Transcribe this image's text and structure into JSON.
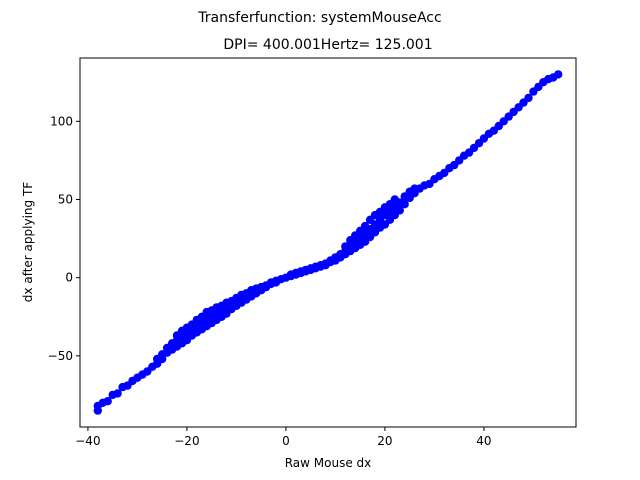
{
  "chart_data": {
    "type": "scatter",
    "suptitle": "Transferfunction: systemMouseAcc",
    "title": "DPI= 400.001Hertz= 125.001",
    "xlabel": "Raw Mouse dx",
    "ylabel": "dx after applying TF",
    "xlim": [
      -41.6,
      58.6
    ],
    "ylim": [
      -95.5,
      140.5
    ],
    "xticks": [
      -40,
      -20,
      0,
      20,
      40
    ],
    "xtick_labels": [
      "−40",
      "−20",
      "0",
      "20",
      "40"
    ],
    "yticks": [
      -50,
      0,
      50,
      100
    ],
    "ytick_labels": [
      "−50",
      "0",
      "50",
      "100"
    ],
    "grid": false,
    "legend": "none",
    "marker_color": "#0000ff",
    "series": [
      {
        "points": [
          [
            -38,
            -85
          ],
          [
            -38,
            -82
          ],
          [
            -37,
            -80
          ],
          [
            -36,
            -79
          ],
          [
            -35,
            -75
          ],
          [
            -34,
            -74
          ],
          [
            -33,
            -70
          ],
          [
            -32,
            -69
          ],
          [
            -31,
            -66
          ],
          [
            -30,
            -64
          ],
          [
            -29,
            -62
          ],
          [
            -28,
            -60
          ],
          [
            -27,
            -57
          ],
          [
            -26,
            -55
          ],
          [
            -26,
            -52
          ],
          [
            -25,
            -52
          ],
          [
            -25,
            -49
          ],
          [
            -24,
            -48
          ],
          [
            -24,
            -45
          ],
          [
            -23,
            -46
          ],
          [
            -23,
            -42
          ],
          [
            -22,
            -44
          ],
          [
            -22,
            -40
          ],
          [
            -22,
            -37
          ],
          [
            -21,
            -42
          ],
          [
            -21,
            -38
          ],
          [
            -21,
            -34
          ],
          [
            -20,
            -40
          ],
          [
            -20,
            -36
          ],
          [
            -20,
            -32
          ],
          [
            -19,
            -37
          ],
          [
            -19,
            -33
          ],
          [
            -19,
            -30
          ],
          [
            -18,
            -35
          ],
          [
            -18,
            -31
          ],
          [
            -18,
            -27
          ],
          [
            -17,
            -33
          ],
          [
            -17,
            -29
          ],
          [
            -17,
            -25
          ],
          [
            -16,
            -31
          ],
          [
            -16,
            -27
          ],
          [
            -16,
            -22
          ],
          [
            -15,
            -29
          ],
          [
            -15,
            -25
          ],
          [
            -15,
            -21
          ],
          [
            -14,
            -27
          ],
          [
            -14,
            -23
          ],
          [
            -14,
            -19
          ],
          [
            -13,
            -25
          ],
          [
            -13,
            -21
          ],
          [
            -13,
            -18
          ],
          [
            -12,
            -23
          ],
          [
            -12,
            -19
          ],
          [
            -12,
            -16
          ],
          [
            -11,
            -20
          ],
          [
            -11,
            -17
          ],
          [
            -11,
            -15
          ],
          [
            -10,
            -18
          ],
          [
            -10,
            -15
          ],
          [
            -10,
            -13
          ],
          [
            -9,
            -16
          ],
          [
            -9,
            -13
          ],
          [
            -9,
            -11
          ],
          [
            -8,
            -14
          ],
          [
            -8,
            -12
          ],
          [
            -8,
            -10
          ],
          [
            -7,
            -12
          ],
          [
            -7,
            -10
          ],
          [
            -7,
            -8
          ],
          [
            -6,
            -10
          ],
          [
            -6,
            -8
          ],
          [
            -6,
            -7
          ],
          [
            -5,
            -8
          ],
          [
            -5,
            -6
          ],
          [
            -4,
            -6
          ],
          [
            -4,
            -5
          ],
          [
            -3,
            -4
          ],
          [
            -3,
            -3
          ],
          [
            -2,
            -3
          ],
          [
            -2,
            -2
          ],
          [
            -1,
            -1
          ],
          [
            0,
            0
          ],
          [
            1,
            1
          ],
          [
            1,
            2
          ],
          [
            2,
            2
          ],
          [
            2,
            3
          ],
          [
            3,
            3
          ],
          [
            3,
            4
          ],
          [
            4,
            4
          ],
          [
            4,
            5
          ],
          [
            5,
            5
          ],
          [
            5,
            6
          ],
          [
            6,
            6
          ],
          [
            6,
            7
          ],
          [
            7,
            7
          ],
          [
            7,
            8
          ],
          [
            8,
            8
          ],
          [
            8,
            9
          ],
          [
            9,
            10
          ],
          [
            9,
            11
          ],
          [
            10,
            11
          ],
          [
            10,
            13
          ],
          [
            11,
            13
          ],
          [
            11,
            15
          ],
          [
            12,
            15
          ],
          [
            12,
            17
          ],
          [
            12,
            20
          ],
          [
            13,
            17
          ],
          [
            13,
            20
          ],
          [
            13,
            24
          ],
          [
            14,
            19
          ],
          [
            14,
            23
          ],
          [
            14,
            27
          ],
          [
            15,
            21
          ],
          [
            15,
            25
          ],
          [
            15,
            30
          ],
          [
            16,
            23
          ],
          [
            16,
            28
          ],
          [
            16,
            33
          ],
          [
            17,
            26
          ],
          [
            17,
            31
          ],
          [
            17,
            37
          ],
          [
            18,
            29
          ],
          [
            18,
            34
          ],
          [
            18,
            40
          ],
          [
            19,
            32
          ],
          [
            19,
            37
          ],
          [
            19,
            42
          ],
          [
            20,
            34
          ],
          [
            20,
            40
          ],
          [
            20,
            45
          ],
          [
            21,
            37
          ],
          [
            21,
            42
          ],
          [
            21,
            47
          ],
          [
            22,
            40
          ],
          [
            22,
            45
          ],
          [
            22,
            50
          ],
          [
            23,
            43
          ],
          [
            23,
            48
          ],
          [
            24,
            47
          ],
          [
            24,
            52
          ],
          [
            25,
            51
          ],
          [
            25,
            55
          ],
          [
            26,
            54
          ],
          [
            26,
            57
          ],
          [
            27,
            57
          ],
          [
            28,
            59
          ],
          [
            29,
            60
          ],
          [
            30,
            63
          ],
          [
            31,
            65
          ],
          [
            32,
            67
          ],
          [
            33,
            70
          ],
          [
            34,
            72
          ],
          [
            35,
            75
          ],
          [
            36,
            78
          ],
          [
            37,
            80
          ],
          [
            38,
            83
          ],
          [
            39,
            86
          ],
          [
            40,
            89
          ],
          [
            41,
            92
          ],
          [
            42,
            94
          ],
          [
            43,
            97
          ],
          [
            44,
            100
          ],
          [
            45,
            103
          ],
          [
            46,
            106
          ],
          [
            47,
            109
          ],
          [
            48,
            112
          ],
          [
            49,
            115
          ],
          [
            50,
            119
          ],
          [
            51,
            122
          ],
          [
            52,
            125
          ],
          [
            53,
            127
          ],
          [
            54,
            128
          ],
          [
            55,
            130
          ]
        ]
      }
    ]
  }
}
